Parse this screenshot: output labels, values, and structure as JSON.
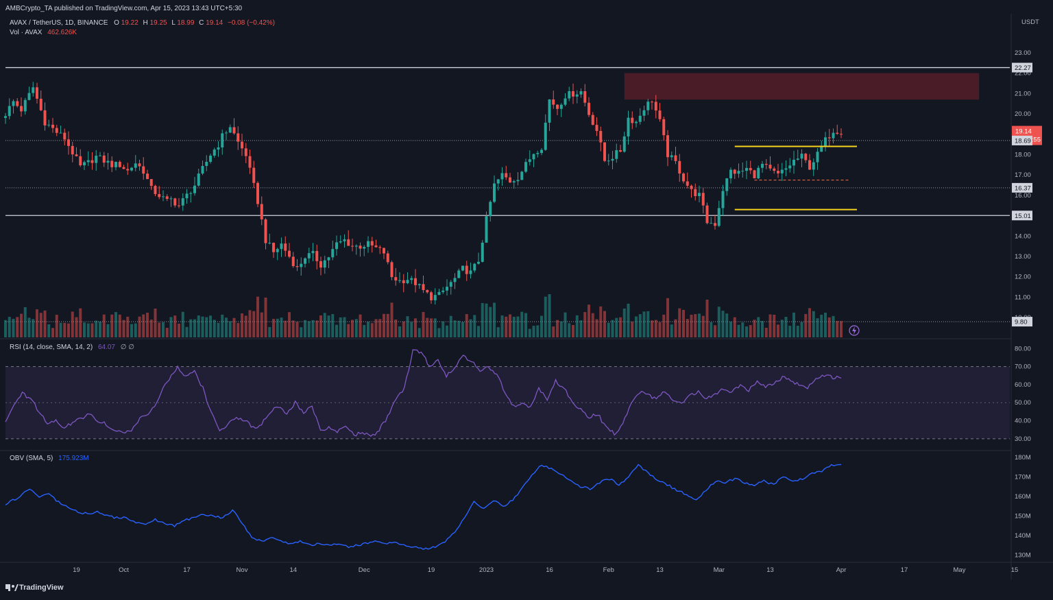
{
  "header": {
    "published": "AMBCrypto_TA published on TradingView.com, Apr 15, 2023 13:43 UTC+5:30"
  },
  "legend": {
    "symbol": "AVAX / TetherUS, 1D, BINANCE",
    "open_label": "O",
    "open": "19.22",
    "high_label": "H",
    "high": "19.25",
    "low_label": "L",
    "low": "18.99",
    "close_label": "C",
    "close": "19.14",
    "change": "−0.08 (−0.42%)",
    "vol_label": "Vol · AVAX",
    "vol_value": "462.626K",
    "rsi_label": "RSI (14, close, SMA, 14, 2)",
    "rsi_value": "64.07",
    "rsi_extra": "∅  ∅",
    "obv_label": "OBV (SMA, 5)",
    "obv_value": "175.923M"
  },
  "colors": {
    "up": "#26a69a",
    "down": "#ef5350",
    "rsi_line": "#7e57c2",
    "obv_line": "#2962ff",
    "level": "#d1d4dc",
    "yellow": "#f7d31e",
    "zone": "#5d1f2b",
    "bg": "#131722"
  },
  "footer": {
    "brand": "TradingView",
    "brand_icon": "tradingview-logo-icon"
  },
  "chart_data": {
    "type": "candlestick",
    "currency": "USDT",
    "price_axis": {
      "ylim": [
        9.5,
        23.5
      ],
      "ticks": [
        "23.00",
        "22.00",
        "21.00",
        "20.00",
        "19.00",
        "18.00",
        "17.00",
        "16.00",
        "15.00",
        "14.00",
        "13.00",
        "12.00",
        "11.00",
        "10.00"
      ]
    },
    "time_axis": [
      "19",
      "Oct",
      "17",
      "Nov",
      "14",
      "Dec",
      "19",
      "2023",
      "16",
      "Feb",
      "13",
      "Mar",
      "13",
      "Apr",
      "17",
      "May",
      "15"
    ],
    "price_tags": [
      {
        "value": "22.27",
        "kind": "level"
      },
      {
        "value": "19.14",
        "kind": "last",
        "countdown": "15:46:55"
      },
      {
        "value": "18.69",
        "kind": "level"
      },
      {
        "value": "16.37",
        "kind": "level"
      },
      {
        "value": "15.01",
        "kind": "level"
      },
      {
        "value": "9.80",
        "kind": "level"
      }
    ],
    "levels": [
      22.27,
      18.69,
      16.37,
      15.01,
      9.8
    ],
    "supply_zone": {
      "from": "Feb 5",
      "to": "May 6",
      "low": 20.7,
      "high": 22.0
    },
    "range_top": {
      "from": "Mar 13",
      "to": "Apr 12",
      "value": 18.4
    },
    "range_bottom": {
      "from": "Mar 13",
      "to": "Apr 12",
      "value": 15.3
    },
    "range_mid": {
      "from": "Mar 20",
      "to": "Apr 8",
      "value": 16.75
    },
    "close_series": {
      "start": "Sep 1 2022",
      "anchors": [
        [
          0,
          20.0
        ],
        [
          2,
          20.6
        ],
        [
          4,
          20.2
        ],
        [
          7,
          21.3
        ],
        [
          10,
          19.6
        ],
        [
          13,
          19.1
        ],
        [
          15,
          18.8
        ],
        [
          17,
          18.1
        ],
        [
          19,
          17.4
        ],
        [
          21,
          17.6
        ],
        [
          23,
          17.9
        ],
        [
          25,
          17.7
        ],
        [
          27,
          17.5
        ],
        [
          29,
          17.5
        ],
        [
          31,
          17.2
        ],
        [
          33,
          17.6
        ],
        [
          35,
          17.2
        ],
        [
          37,
          16.3
        ],
        [
          39,
          16.0
        ],
        [
          41,
          15.7
        ],
        [
          42,
          15.8
        ],
        [
          44,
          15.5
        ],
        [
          46,
          16.0
        ],
        [
          48,
          16.5
        ],
        [
          50,
          17.3
        ],
        [
          52,
          18.0
        ],
        [
          54,
          18.5
        ],
        [
          55,
          18.9
        ],
        [
          57,
          19.4
        ],
        [
          59,
          18.6
        ],
        [
          61,
          18.0
        ],
        [
          62,
          17.2
        ],
        [
          64,
          15.7
        ],
        [
          66,
          13.8
        ],
        [
          68,
          13.2
        ],
        [
          70,
          13.6
        ],
        [
          72,
          13.0
        ],
        [
          74,
          12.4
        ],
        [
          76,
          13.0
        ],
        [
          78,
          13.1
        ],
        [
          80,
          12.6
        ],
        [
          82,
          13.0
        ],
        [
          84,
          13.6
        ],
        [
          86,
          13.8
        ],
        [
          88,
          13.5
        ],
        [
          90,
          13.5
        ],
        [
          92,
          13.6
        ],
        [
          94,
          13.4
        ],
        [
          96,
          13.2
        ],
        [
          98,
          12.0
        ],
        [
          100,
          11.8
        ],
        [
          102,
          11.9
        ],
        [
          104,
          11.7
        ],
        [
          106,
          11.3
        ],
        [
          108,
          11.0
        ],
        [
          110,
          11.1
        ],
        [
          112,
          11.5
        ],
        [
          114,
          11.9
        ],
        [
          116,
          12.4
        ],
        [
          118,
          12.2
        ],
        [
          120,
          12.8
        ],
        [
          122,
          14.8
        ],
        [
          124,
          16.5
        ],
        [
          126,
          17.0
        ],
        [
          128,
          16.7
        ],
        [
          130,
          16.9
        ],
        [
          132,
          17.5
        ],
        [
          134,
          18.1
        ],
        [
          136,
          18.4
        ],
        [
          138,
          20.7
        ],
        [
          140,
          20.3
        ],
        [
          142,
          20.9
        ],
        [
          144,
          21.0
        ],
        [
          146,
          21.1
        ],
        [
          148,
          20.0
        ],
        [
          150,
          19.2
        ],
        [
          152,
          17.7
        ],
        [
          154,
          17.9
        ],
        [
          156,
          18.2
        ],
        [
          158,
          19.8
        ],
        [
          160,
          19.6
        ],
        [
          162,
          20.3
        ],
        [
          164,
          20.7
        ],
        [
          166,
          19.6
        ],
        [
          168,
          18.0
        ],
        [
          170,
          17.6
        ],
        [
          172,
          16.8
        ],
        [
          174,
          16.2
        ],
        [
          176,
          16.0
        ],
        [
          178,
          14.7
        ],
        [
          180,
          14.6
        ],
        [
          182,
          16.3
        ],
        [
          184,
          17.2
        ],
        [
          186,
          17.1
        ],
        [
          188,
          17.3
        ],
        [
          190,
          17.0
        ],
        [
          192,
          17.5
        ],
        [
          194,
          17.2
        ],
        [
          196,
          17.0
        ],
        [
          198,
          17.3
        ],
        [
          200,
          17.7
        ],
        [
          202,
          17.9
        ],
        [
          204,
          17.4
        ],
        [
          206,
          18.0
        ],
        [
          208,
          18.7
        ],
        [
          210,
          19.2
        ],
        [
          212,
          19.14
        ]
      ]
    },
    "rsi": {
      "ylim": [
        25,
        82
      ],
      "ticks": [
        "80.00",
        "70.00",
        "60.00",
        "50.00",
        "40.00",
        "30.00"
      ],
      "band": [
        30,
        70
      ],
      "mid": 50,
      "anchors": [
        [
          0,
          40
        ],
        [
          2,
          48
        ],
        [
          4,
          55
        ],
        [
          6,
          52
        ],
        [
          8,
          45
        ],
        [
          10,
          38
        ],
        [
          12,
          40
        ],
        [
          14,
          36
        ],
        [
          16,
          39
        ],
        [
          18,
          41
        ],
        [
          20,
          44
        ],
        [
          22,
          40
        ],
        [
          24,
          38
        ],
        [
          26,
          35
        ],
        [
          28,
          33
        ],
        [
          30,
          35
        ],
        [
          32,
          41
        ],
        [
          34,
          44
        ],
        [
          36,
          50
        ],
        [
          38,
          60
        ],
        [
          40,
          66
        ],
        [
          41,
          70
        ],
        [
          43,
          64
        ],
        [
          45,
          67
        ],
        [
          47,
          58
        ],
        [
          49,
          44
        ],
        [
          51,
          35
        ],
        [
          53,
          38
        ],
        [
          55,
          42
        ],
        [
          57,
          40
        ],
        [
          59,
          36
        ],
        [
          61,
          38
        ],
        [
          63,
          45
        ],
        [
          65,
          48
        ],
        [
          67,
          44
        ],
        [
          69,
          50
        ],
        [
          71,
          44
        ],
        [
          73,
          48
        ],
        [
          75,
          35
        ],
        [
          77,
          36
        ],
        [
          79,
          34
        ],
        [
          81,
          36
        ],
        [
          83,
          32
        ],
        [
          85,
          34
        ],
        [
          87,
          31
        ],
        [
          89,
          35
        ],
        [
          91,
          42
        ],
        [
          93,
          52
        ],
        [
          95,
          58
        ],
        [
          97,
          79
        ],
        [
          99,
          78
        ],
        [
          101,
          70
        ],
        [
          103,
          74
        ],
        [
          105,
          65
        ],
        [
          107,
          70
        ],
        [
          109,
          76
        ],
        [
          111,
          73
        ],
        [
          113,
          68
        ],
        [
          115,
          70
        ],
        [
          117,
          66
        ],
        [
          119,
          55
        ],
        [
          121,
          48
        ],
        [
          123,
          50
        ],
        [
          125,
          47
        ],
        [
          127,
          58
        ],
        [
          129,
          52
        ],
        [
          131,
          62
        ],
        [
          133,
          58
        ],
        [
          135,
          50
        ],
        [
          137,
          46
        ],
        [
          139,
          42
        ],
        [
          141,
          44
        ],
        [
          143,
          36
        ],
        [
          145,
          33
        ],
        [
          147,
          38
        ],
        [
          149,
          50
        ],
        [
          151,
          56
        ],
        [
          153,
          54
        ],
        [
          155,
          52
        ],
        [
          157,
          56
        ],
        [
          159,
          51
        ],
        [
          161,
          49
        ],
        [
          163,
          54
        ],
        [
          165,
          56
        ],
        [
          167,
          52
        ],
        [
          169,
          55
        ],
        [
          171,
          58
        ],
        [
          173,
          56
        ],
        [
          175,
          60
        ],
        [
          177,
          57
        ],
        [
          179,
          62
        ],
        [
          181,
          59
        ],
        [
          183,
          61
        ],
        [
          185,
          64
        ],
        [
          187,
          62
        ],
        [
          189,
          60
        ],
        [
          191,
          58
        ],
        [
          193,
          63
        ],
        [
          195,
          65
        ],
        [
          197,
          64
        ],
        [
          199,
          64
        ]
      ]
    },
    "obv": {
      "ylim": [
        127,
        181
      ],
      "ticks": [
        "180M",
        "170M",
        "160M",
        "150M",
        "140M",
        "130M"
      ],
      "anchors": [
        [
          0,
          156
        ],
        [
          3,
          160
        ],
        [
          5,
          164
        ],
        [
          7,
          160
        ],
        [
          9,
          161
        ],
        [
          11,
          157
        ],
        [
          13,
          154
        ],
        [
          15,
          152
        ],
        [
          17,
          151
        ],
        [
          19,
          152
        ],
        [
          21,
          150
        ],
        [
          23,
          149
        ],
        [
          25,
          149
        ],
        [
          27,
          147
        ],
        [
          29,
          146
        ],
        [
          31,
          148
        ],
        [
          33,
          146
        ],
        [
          35,
          145
        ],
        [
          37,
          148
        ],
        [
          39,
          149
        ],
        [
          41,
          151
        ],
        [
          43,
          150
        ],
        [
          45,
          149
        ],
        [
          47,
          153
        ],
        [
          49,
          146
        ],
        [
          51,
          139
        ],
        [
          53,
          137
        ],
        [
          55,
          139
        ],
        [
          57,
          137
        ],
        [
          59,
          136
        ],
        [
          61,
          137
        ],
        [
          63,
          135
        ],
        [
          65,
          136
        ],
        [
          67,
          135
        ],
        [
          69,
          136
        ],
        [
          71,
          134
        ],
        [
          73,
          135
        ],
        [
          75,
          136
        ],
        [
          77,
          137
        ],
        [
          79,
          136
        ],
        [
          81,
          136
        ],
        [
          83,
          135
        ],
        [
          85,
          134
        ],
        [
          87,
          133
        ],
        [
          89,
          134
        ],
        [
          91,
          137
        ],
        [
          93,
          142
        ],
        [
          95,
          149
        ],
        [
          97,
          157
        ],
        [
          99,
          154
        ],
        [
          101,
          158
        ],
        [
          103,
          155
        ],
        [
          105,
          158
        ],
        [
          107,
          164
        ],
        [
          109,
          171
        ],
        [
          111,
          176
        ],
        [
          113,
          174
        ],
        [
          115,
          171
        ],
        [
          117,
          168
        ],
        [
          119,
          165
        ],
        [
          121,
          164
        ],
        [
          123,
          167
        ],
        [
          125,
          169
        ],
        [
          127,
          166
        ],
        [
          129,
          170
        ],
        [
          131,
          176
        ],
        [
          133,
          172
        ],
        [
          135,
          168
        ],
        [
          137,
          166
        ],
        [
          139,
          163
        ],
        [
          141,
          161
        ],
        [
          143,
          158
        ],
        [
          145,
          163
        ],
        [
          147,
          168
        ],
        [
          149,
          167
        ],
        [
          151,
          169
        ],
        [
          153,
          167
        ],
        [
          155,
          166
        ],
        [
          157,
          168
        ],
        [
          159,
          166
        ],
        [
          161,
          170
        ],
        [
          163,
          168
        ],
        [
          165,
          169
        ],
        [
          167,
          172
        ],
        [
          169,
          173
        ],
        [
          171,
          176
        ],
        [
          173,
          176
        ]
      ]
    }
  }
}
